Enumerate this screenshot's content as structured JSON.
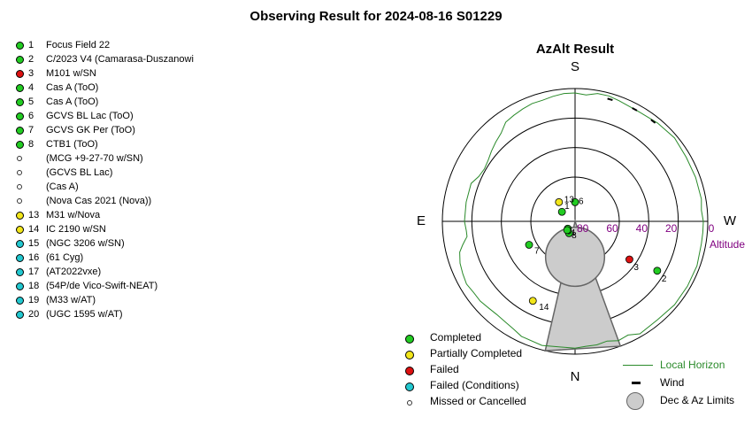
{
  "title": "Observing Result for 2024-08-16 S01229",
  "targets": [
    {
      "num": "1",
      "label": "Focus Field 22",
      "status": "completed"
    },
    {
      "num": "2",
      "label": "C/2023 V4 (Camarasa-Duszanowi",
      "status": "completed"
    },
    {
      "num": "3",
      "label": "M101 w/SN",
      "status": "failed"
    },
    {
      "num": "4",
      "label": "Cas A (ToO)",
      "status": "completed"
    },
    {
      "num": "5",
      "label": "Cas A (ToO)",
      "status": "completed"
    },
    {
      "num": "6",
      "label": "GCVS BL Lac (ToO)",
      "status": "completed"
    },
    {
      "num": "7",
      "label": "GCVS GK Per (ToO)",
      "status": "completed"
    },
    {
      "num": "8",
      "label": "CTB1 (ToO)",
      "status": "completed"
    },
    {
      "num": "",
      "label": "(MCG +9-27-70 w/SN)",
      "status": "missed"
    },
    {
      "num": "",
      "label": "(GCVS BL Lac)",
      "status": "missed"
    },
    {
      "num": "",
      "label": "(Cas A)",
      "status": "missed"
    },
    {
      "num": "",
      "label": "(Nova Cas 2021 (Nova))",
      "status": "missed"
    },
    {
      "num": "13",
      "label": "M31 w/Nova",
      "status": "partial"
    },
    {
      "num": "14",
      "label": "IC 2190 w/SN",
      "status": "partial"
    },
    {
      "num": "15",
      "label": "(NGC 3206 w/SN)",
      "status": "failed_conditions"
    },
    {
      "num": "16",
      "label": "(61 Cyg)",
      "status": "failed_conditions"
    },
    {
      "num": "17",
      "label": "(AT2022vxe)",
      "status": "failed_conditions"
    },
    {
      "num": "18",
      "label": "(54P/de Vico-Swift-NEAT)",
      "status": "failed_conditions"
    },
    {
      "num": "19",
      "label": "(M33 w/AT)",
      "status": "failed_conditions"
    },
    {
      "num": "20",
      "label": "(UGC 1595 w/AT)",
      "status": "failed_conditions"
    }
  ],
  "status_colors": {
    "completed": "#22cc22",
    "partial": "#f2e61a",
    "failed": "#dd1111",
    "failed_conditions": "#22c8d0",
    "missed": "#ffffff"
  },
  "chart_data": {
    "type": "scatter",
    "projection": "polar-azimuth-altitude",
    "title": "AzAlt Result",
    "radial_axis_label": "Altitude",
    "altitude_ticks": [
      "80",
      "60",
      "40",
      "20",
      "0"
    ],
    "altitude_range": [
      0,
      90
    ],
    "compass": {
      "top": "S",
      "bottom": "N",
      "left": "E",
      "right": "W"
    },
    "points": [
      {
        "label": "1",
        "az": 126,
        "alt": 79,
        "status": "completed"
      },
      {
        "label": "2",
        "az": 301,
        "alt": 25,
        "status": "completed"
      },
      {
        "label": "3",
        "az": 305,
        "alt": 45,
        "status": "failed"
      },
      {
        "label": "4",
        "az": 45,
        "alt": 83,
        "status": "completed"
      },
      {
        "label": "5",
        "az": 27,
        "alt": 81,
        "status": "completed"
      },
      {
        "label": "6",
        "az": 180,
        "alt": 77,
        "status": "completed"
      },
      {
        "label": "7",
        "az": 63,
        "alt": 55,
        "status": "completed"
      },
      {
        "label": "8",
        "az": 42,
        "alt": 82,
        "status": "completed"
      },
      {
        "label": "13",
        "az": 140,
        "alt": 73,
        "status": "partial"
      },
      {
        "label": "14",
        "az": 28,
        "alt": 29,
        "status": "partial"
      }
    ],
    "limit_circle": {
      "az": 0,
      "alt": 66,
      "radius_deg": 20
    },
    "limit_wedge": {
      "az_min": -20,
      "az_max": 13
    },
    "local_horizon": [
      [
        0,
        4
      ],
      [
        15,
        3
      ],
      [
        25,
        4
      ],
      [
        30,
        6
      ],
      [
        35,
        7
      ],
      [
        40,
        7.5
      ],
      [
        45,
        7
      ],
      [
        50,
        6
      ],
      [
        55,
        6
      ],
      [
        60,
        5
      ],
      [
        65,
        6
      ],
      [
        70,
        7
      ],
      [
        75,
        9
      ],
      [
        78,
        12
      ],
      [
        80,
        14
      ],
      [
        82,
        16
      ],
      [
        85,
        16
      ],
      [
        90,
        15
      ],
      [
        100,
        15
      ],
      [
        110,
        15
      ],
      [
        115,
        18
      ],
      [
        120,
        19
      ],
      [
        125,
        18
      ],
      [
        130,
        16
      ],
      [
        135,
        14
      ],
      [
        140,
        12
      ],
      [
        145,
        8
      ],
      [
        150,
        7
      ],
      [
        155,
        6
      ],
      [
        160,
        5
      ],
      [
        165,
        5
      ],
      [
        170,
        4
      ],
      [
        175,
        3
      ],
      [
        180,
        3
      ],
      [
        185,
        4
      ],
      [
        190,
        2
      ],
      [
        195,
        2
      ],
      [
        200,
        3
      ],
      [
        210,
        4
      ],
      [
        220,
        3
      ],
      [
        230,
        2
      ],
      [
        240,
        3
      ],
      [
        250,
        3
      ],
      [
        260,
        3
      ],
      [
        265,
        4
      ],
      [
        270,
        3
      ],
      [
        275,
        3
      ],
      [
        280,
        3
      ],
      [
        290,
        2
      ],
      [
        300,
        2
      ],
      [
        310,
        2
      ],
      [
        320,
        3
      ],
      [
        330,
        2
      ],
      [
        335,
        5
      ],
      [
        340,
        4
      ],
      [
        345,
        6
      ],
      [
        350,
        5
      ],
      [
        355,
        5
      ],
      [
        360,
        4
      ]
    ],
    "wind_marks": [
      {
        "az": 196,
        "alt": 4
      },
      {
        "az": 208,
        "alt": 4
      },
      {
        "az": 218,
        "alt": 4
      }
    ],
    "legend": [
      {
        "label": "Completed",
        "status": "completed"
      },
      {
        "label": "Partially Completed",
        "status": "partial"
      },
      {
        "label": "Failed",
        "status": "failed"
      },
      {
        "label": "Failed (Conditions)",
        "status": "failed_conditions"
      },
      {
        "label": "Missed or Cancelled",
        "status": "missed"
      }
    ],
    "legend2": [
      {
        "label": "Local Horizon",
        "kind": "line",
        "color": "#2a8a2a"
      },
      {
        "label": "Wind",
        "kind": "dash"
      },
      {
        "label": "Dec & Az Limits",
        "kind": "circle"
      }
    ]
  }
}
